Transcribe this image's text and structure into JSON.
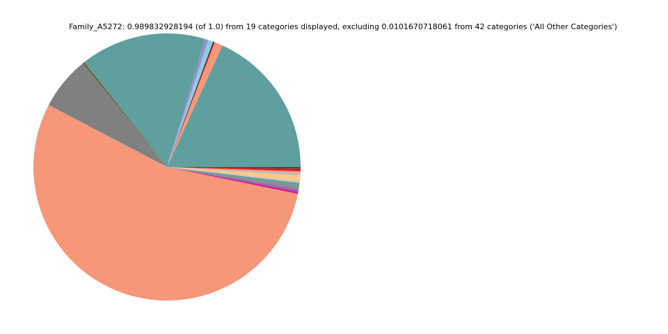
{
  "chart_data": {
    "type": "pie",
    "title": "Family_A5272: 0.989832928194 (of 1.0) from 19 categories displayed, excluding 0.0101670718061 from 42 categories ('All Other Categories')",
    "values": [
      0.18,
      0.01,
      0.002,
      0.006,
      0.004,
      0.151,
      0.002,
      0.064,
      0.539,
      0.003,
      0.003,
      0.004,
      0.003,
      0.002,
      0.007,
      0.003,
      0.002,
      0.003,
      0.002
    ],
    "colors": [
      "#5f9f9e",
      "#f7977a",
      "#8b1a1a",
      "#87ceeb",
      "#9b8fc9",
      "#5f9f9e",
      "#6b5b2e",
      "#808080",
      "#f7977a",
      "#d0208f",
      "#8b6fb0",
      "#8c8c8c",
      "#5f9f9e",
      "#c0c0c0",
      "#fcc98a",
      "#bbbbbb",
      "#f7977a",
      "#d02020",
      "#444444"
    ],
    "start_angle": 0
  }
}
